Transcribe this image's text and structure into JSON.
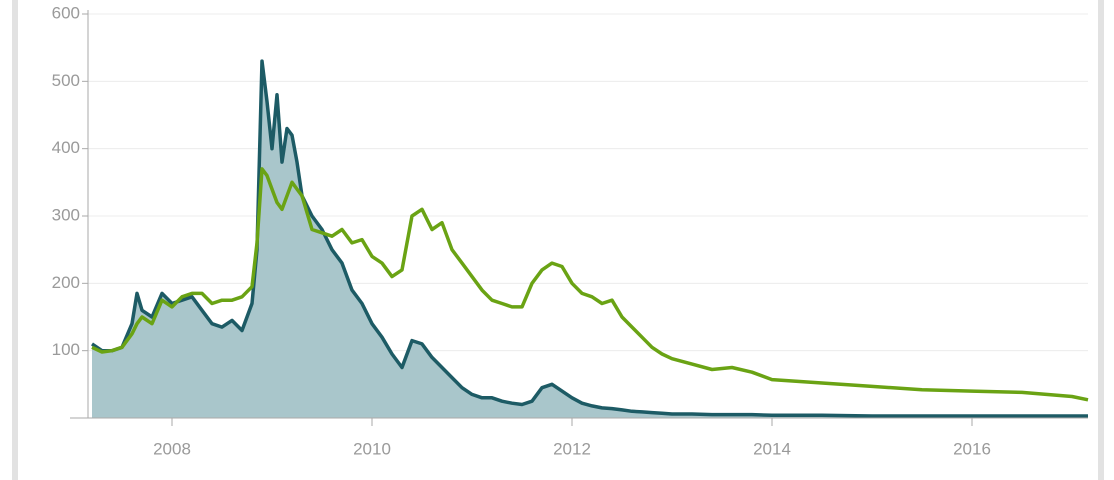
{
  "chart_data": {
    "type": "line",
    "x": [
      2007.2,
      2007.3,
      2007.4,
      2007.5,
      2007.6,
      2007.65,
      2007.7,
      2007.8,
      2007.9,
      2008.0,
      2008.1,
      2008.2,
      2008.3,
      2008.4,
      2008.5,
      2008.6,
      2008.7,
      2008.8,
      2008.85,
      2008.9,
      2008.95,
      2009.0,
      2009.05,
      2009.1,
      2009.15,
      2009.2,
      2009.25,
      2009.3,
      2009.4,
      2009.5,
      2009.6,
      2009.7,
      2009.8,
      2009.9,
      2010.0,
      2010.1,
      2010.2,
      2010.3,
      2010.4,
      2010.5,
      2010.6,
      2010.7,
      2010.8,
      2010.9,
      2011.0,
      2011.1,
      2011.2,
      2011.3,
      2011.4,
      2011.5,
      2011.6,
      2011.7,
      2011.8,
      2011.9,
      2012.0,
      2012.1,
      2012.2,
      2012.3,
      2012.4,
      2012.5,
      2012.6,
      2012.7,
      2012.8,
      2012.9,
      2013.0,
      2013.2,
      2013.4,
      2013.6,
      2013.8,
      2014.0,
      2014.5,
      2015.0,
      2015.5,
      2016.0,
      2016.5,
      2017.0,
      2017.16
    ],
    "series": [
      {
        "color": "#1d5b65",
        "fill": "#a9c6cb",
        "values": [
          110,
          100,
          100,
          105,
          140,
          185,
          160,
          150,
          185,
          170,
          175,
          180,
          160,
          140,
          135,
          145,
          130,
          170,
          250,
          530,
          470,
          400,
          480,
          380,
          430,
          420,
          380,
          330,
          300,
          280,
          250,
          230,
          190,
          170,
          140,
          120,
          95,
          75,
          115,
          110,
          90,
          75,
          60,
          45,
          35,
          30,
          30,
          25,
          22,
          20,
          25,
          45,
          50,
          40,
          30,
          22,
          18,
          15,
          14,
          12,
          10,
          9,
          8,
          7,
          6,
          6,
          5,
          5,
          5,
          4,
          4,
          3,
          3,
          3,
          3,
          3,
          3
        ]
      },
      {
        "color": "#6aa314",
        "values": [
          105,
          98,
          100,
          105,
          125,
          140,
          150,
          140,
          175,
          165,
          180,
          185,
          185,
          170,
          175,
          175,
          180,
          195,
          260,
          370,
          360,
          340,
          320,
          310,
          330,
          350,
          340,
          330,
          280,
          275,
          270,
          280,
          260,
          265,
          240,
          230,
          210,
          220,
          300,
          310,
          280,
          290,
          250,
          230,
          210,
          190,
          175,
          170,
          165,
          165,
          200,
          220,
          230,
          225,
          200,
          185,
          180,
          170,
          175,
          150,
          135,
          120,
          105,
          95,
          88,
          80,
          72,
          75,
          68,
          57,
          52,
          47,
          42,
          40,
          38,
          32,
          27
        ]
      }
    ],
    "xlim": [
      2007.16,
      2017.16
    ],
    "xticks": [
      2008,
      2010,
      2012,
      2014,
      2016
    ],
    "ylim": [
      0,
      600
    ],
    "yticks": [
      100,
      200,
      300,
      400,
      500,
      600
    ],
    "grid": true
  }
}
